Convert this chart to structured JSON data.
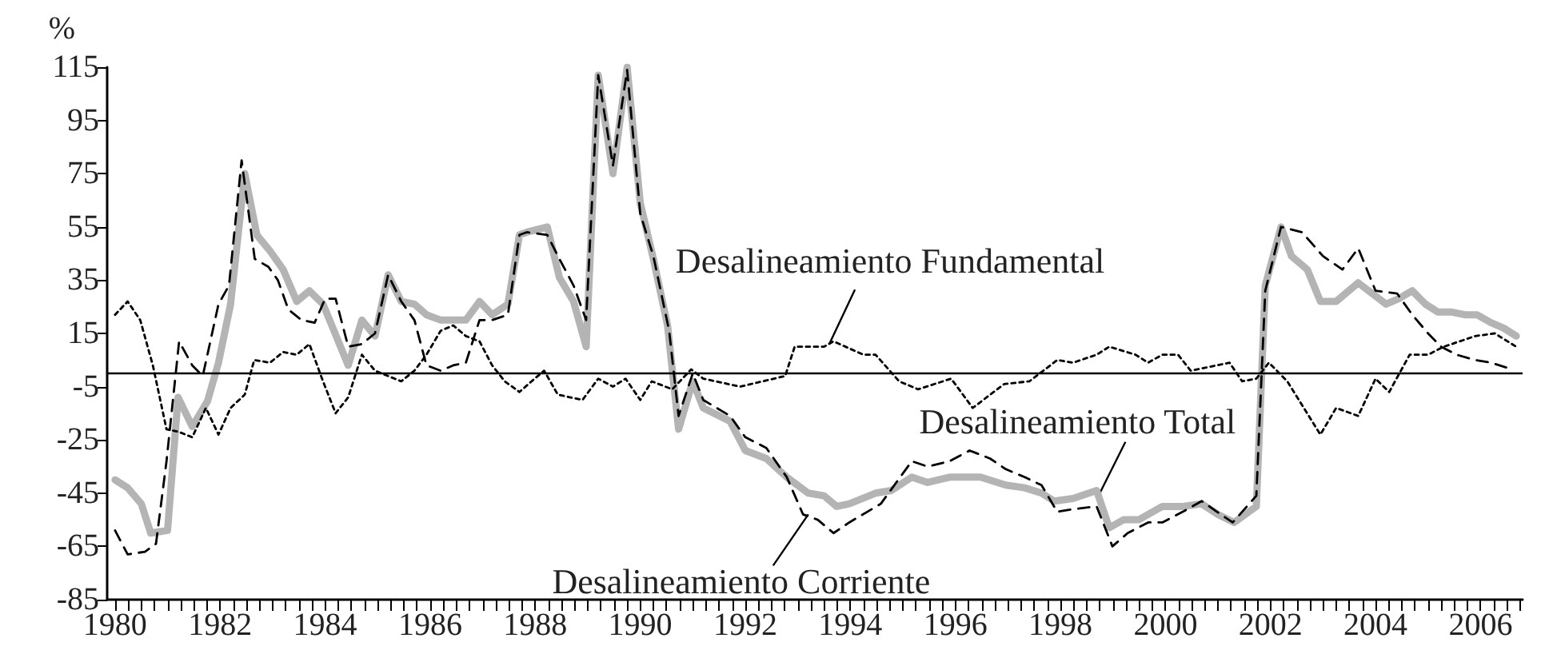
{
  "chart_data": {
    "type": "line",
    "ylabel": "%",
    "xlim": [
      1979.85,
      2006.8
    ],
    "ylim": [
      -85,
      115
    ],
    "yticks": [
      -85,
      -65,
      -45,
      -25,
      -5,
      15,
      35,
      55,
      75,
      95,
      115
    ],
    "xticks": [
      1980,
      {
        "value": 1980.25,
        "label": null
      },
      {
        "value": 1980.5,
        "label": null
      },
      {
        "value": 1980.75,
        "label": null
      },
      {
        "value": 1981,
        "label": null
      },
      {
        "value": 1981.25,
        "label": null
      },
      {
        "value": 1981.5,
        "label": null
      },
      {
        "value": 1981.75,
        "label": null
      },
      1982,
      {
        "value": 1982.25,
        "label": null
      },
      {
        "value": 1982.5,
        "label": null
      },
      {
        "value": 1982.75,
        "label": null
      },
      {
        "value": 1983,
        "label": null
      },
      {
        "value": 1983.25,
        "label": null
      },
      {
        "value": 1983.5,
        "label": null
      },
      {
        "value": 1983.75,
        "label": null
      },
      1984,
      {
        "value": 1984.25,
        "label": null
      },
      {
        "value": 1984.5,
        "label": null
      },
      {
        "value": 1984.75,
        "label": null
      },
      {
        "value": 1985,
        "label": null
      },
      {
        "value": 1985.25,
        "label": null
      },
      {
        "value": 1985.5,
        "label": null
      },
      {
        "value": 1985.75,
        "label": null
      },
      1986,
      {
        "value": 1986.25,
        "label": null
      },
      {
        "value": 1986.5,
        "label": null
      },
      {
        "value": 1986.75,
        "label": null
      },
      {
        "value": 1987,
        "label": null
      },
      {
        "value": 1987.25,
        "label": null
      },
      {
        "value": 1987.5,
        "label": null
      },
      {
        "value": 1987.75,
        "label": null
      },
      1988,
      {
        "value": 1988.25,
        "label": null
      },
      {
        "value": 1988.5,
        "label": null
      },
      {
        "value": 1988.75,
        "label": null
      },
      {
        "value": 1989,
        "label": null
      },
      {
        "value": 1989.25,
        "label": null
      },
      {
        "value": 1989.5,
        "label": null
      },
      {
        "value": 1989.75,
        "label": null
      },
      1990,
      {
        "value": 1990.25,
        "label": null
      },
      {
        "value": 1990.5,
        "label": null
      },
      {
        "value": 1990.75,
        "label": null
      },
      {
        "value": 1991,
        "label": null
      },
      {
        "value": 1991.25,
        "label": null
      },
      {
        "value": 1991.5,
        "label": null
      },
      {
        "value": 1991.75,
        "label": null
      },
      1992,
      {
        "value": 1992.25,
        "label": null
      },
      {
        "value": 1992.5,
        "label": null
      },
      {
        "value": 1992.75,
        "label": null
      },
      {
        "value": 1993,
        "label": null
      },
      {
        "value": 1993.25,
        "label": null
      },
      {
        "value": 1993.5,
        "label": null
      },
      {
        "value": 1993.75,
        "label": null
      },
      1994,
      {
        "value": 1994.25,
        "label": null
      },
      {
        "value": 1994.5,
        "label": null
      },
      {
        "value": 1994.75,
        "label": null
      },
      {
        "value": 1995,
        "label": null
      },
      {
        "value": 1995.25,
        "label": null
      },
      {
        "value": 1995.5,
        "label": null
      },
      {
        "value": 1995.75,
        "label": null
      },
      1996,
      {
        "value": 1996.25,
        "label": null
      },
      {
        "value": 1996.5,
        "label": null
      },
      {
        "value": 1996.75,
        "label": null
      },
      {
        "value": 1997,
        "label": null
      },
      {
        "value": 1997.25,
        "label": null
      },
      {
        "value": 1997.5,
        "label": null
      },
      {
        "value": 1997.75,
        "label": null
      },
      1998,
      {
        "value": 1998.25,
        "label": null
      },
      {
        "value": 1998.5,
        "label": null
      },
      {
        "value": 1998.75,
        "label": null
      },
      {
        "value": 1999,
        "label": null
      },
      {
        "value": 1999.25,
        "label": null
      },
      {
        "value": 1999.5,
        "label": null
      },
      {
        "value": 1999.75,
        "label": null
      },
      2000,
      {
        "value": 2000.25,
        "label": null
      },
      {
        "value": 2000.5,
        "label": null
      },
      {
        "value": 2000.75,
        "label": null
      },
      {
        "value": 2001,
        "label": null
      },
      {
        "value": 2001.25,
        "label": null
      },
      {
        "value": 2001.5,
        "label": null
      },
      {
        "value": 2001.75,
        "label": null
      },
      2002,
      {
        "value": 2002.25,
        "label": null
      },
      {
        "value": 2002.5,
        "label": null
      },
      {
        "value": 2002.75,
        "label": null
      },
      {
        "value": 2003,
        "label": null
      },
      {
        "value": 2003.25,
        "label": null
      },
      {
        "value": 2003.5,
        "label": null
      },
      {
        "value": 2003.75,
        "label": null
      },
      2004,
      {
        "value": 2004.25,
        "label": null
      },
      {
        "value": 2004.5,
        "label": null
      },
      {
        "value": 2004.75,
        "label": null
      },
      {
        "value": 2005,
        "label": null
      },
      {
        "value": 2005.25,
        "label": null
      },
      {
        "value": 2005.5,
        "label": null
      },
      {
        "value": 2005.75,
        "label": null
      },
      2006,
      {
        "value": 2006.25,
        "label": null
      },
      {
        "value": 2006.5,
        "label": null
      },
      {
        "value": 2006.75,
        "label": null
      }
    ],
    "grid": false,
    "marker": "none",
    "ref_lines": [
      {
        "axis": "y",
        "value": 0,
        "color": "#000000",
        "line_style": "solid"
      }
    ],
    "annotations": [
      {
        "text": "Desalineamiento Fundamental",
        "x": 1993.6,
        "y": 11
      },
      {
        "text": "Desalineamiento Total",
        "x": 1998.75,
        "y": -45
      },
      {
        "text": "Desalineamiento Corriente",
        "x": 1993.2,
        "y": -53
      }
    ],
    "series": [
      {
        "color": "#b4b4b4",
        "line_style": "solid",
        "x": [
          1980,
          1980.24,
          1980.5,
          1980.68,
          1981,
          1981.2,
          1981.47,
          1981.76,
          1981.97,
          1982.2,
          1982.47,
          1982.7,
          1982.95,
          1983.2,
          1983.46,
          1983.7,
          1983.96,
          1984.44,
          1984.7,
          1984.95,
          1985.2,
          1985.45,
          1985.7,
          1985.93,
          1986.2,
          1986.44,
          1986.68,
          1986.94,
          1987.18,
          1987.48,
          1987.7,
          1987.84,
          1988.23,
          1988.46,
          1988.73,
          1988.97,
          1989.2,
          1989.48,
          1989.75,
          1990,
          1990.25,
          1990.52,
          1990.73,
          1991,
          1991.2,
          1991.71,
          1992,
          1992.4,
          1992.79,
          1993.2,
          1993.5,
          1993.74,
          1993.98,
          1994.48,
          1994.78,
          1995.17,
          1995.47,
          1995.89,
          1996.48,
          1996.96,
          1997.32,
          1997.64,
          1997.88,
          1998.24,
          1998.69,
          1998.93,
          1999.2,
          1999.49,
          1999.94,
          2000.33,
          2000.69,
          2001,
          2001.31,
          2001.73,
          2001.9,
          2002.2,
          2002.4,
          2002.7,
          2002.95,
          2003.25,
          2003.67,
          2004.2,
          2004.44,
          2004.7,
          2004.95,
          2005.19,
          2005.45,
          2005.7,
          2005.93,
          2006.2,
          2006.44,
          2006.68
        ],
        "values": [
          -40,
          -43,
          -49,
          -60,
          -59,
          -9,
          -20,
          -10.5,
          4,
          26,
          75,
          52,
          46,
          39,
          27,
          31,
          26,
          3,
          20,
          14,
          37,
          27,
          26,
          22,
          20,
          20,
          20,
          27,
          22,
          26,
          52,
          53,
          55,
          36,
          27,
          10,
          112,
          75,
          115,
          64,
          43,
          18,
          -21,
          -3,
          -13,
          -18,
          -29,
          -32,
          -39,
          -45,
          -46,
          -50,
          -49,
          -45,
          -44,
          -39,
          -41,
          -39,
          -39,
          -42,
          -43,
          -45,
          -48,
          -47,
          -44,
          -58,
          -55,
          -55,
          -50,
          -50,
          -49,
          -53,
          -56,
          -50,
          33,
          55,
          44,
          39,
          27,
          27,
          34,
          26,
          28,
          31,
          26,
          23,
          23,
          22,
          22,
          19,
          17,
          14
        ]
      },
      {
        "color": "#000000",
        "line_style": "dashed",
        "x": [
          1980,
          1980.24,
          1980.57,
          1980.78,
          1980.98,
          1981.22,
          1981.47,
          1981.67,
          1981.97,
          1982.17,
          1982.41,
          1982.66,
          1982.92,
          1983.1,
          1983.3,
          1983.55,
          1983.8,
          1984,
          1984.2,
          1984.44,
          1984.7,
          1984.95,
          1985.2,
          1985.45,
          1985.7,
          1985.93,
          1986.2,
          1986.44,
          1986.68,
          1986.94,
          1987.18,
          1987.48,
          1987.7,
          1987.84,
          1988.23,
          1988.46,
          1988.73,
          1988.97,
          1989.2,
          1989.48,
          1989.75,
          1990,
          1990.25,
          1990.55,
          1990.73,
          1991,
          1991.2,
          1991.71,
          1992,
          1992.4,
          1992.79,
          1993.1,
          1993.38,
          1993.68,
          1993.98,
          1994.58,
          1995.17,
          1995.47,
          1995.89,
          1996.27,
          1996.66,
          1996.96,
          1997.32,
          1997.64,
          1997.94,
          1998.24,
          1998.69,
          1998.99,
          1999.28,
          1999.67,
          1999.94,
          2000.33,
          2000.69,
          2000.98,
          2001.28,
          2001.73,
          2001.9,
          2002.2,
          2002.6,
          2003,
          2003.37,
          2003.67,
          2004,
          2004.41,
          2004.7,
          2005,
          2005.25,
          2005.54,
          2005.9,
          2006.2,
          2006.52
        ],
        "values": [
          -59,
          -68,
          -67,
          -64,
          -33,
          12,
          3,
          -1,
          26,
          33,
          80,
          43,
          40,
          35,
          24,
          20,
          19,
          28,
          28,
          10,
          11,
          15,
          37,
          27,
          20,
          3,
          1,
          3,
          4,
          20,
          20,
          22,
          52,
          53,
          52,
          43,
          33,
          20,
          112,
          78,
          114,
          60,
          44,
          16,
          -16,
          0,
          -10,
          -16,
          -24,
          -28,
          -39,
          -53,
          -55,
          -60,
          -56,
          -49,
          -33,
          -35,
          -33,
          -29,
          -32,
          -36,
          -39,
          -42,
          -52,
          -51,
          -50,
          -65,
          -60,
          -56,
          -56,
          -52,
          -48,
          -52,
          -56,
          -46,
          31,
          55,
          53,
          44,
          39,
          47,
          31,
          30,
          22,
          15,
          10,
          7,
          5,
          4,
          2
        ]
      },
      {
        "color": "#000000",
        "line_style": "dotted",
        "x": [
          1980,
          1980.24,
          1980.48,
          1980.72,
          1980.98,
          1981.22,
          1981.47,
          1981.73,
          1981.97,
          1982.2,
          1982.47,
          1982.65,
          1982.95,
          1983.2,
          1983.46,
          1983.7,
          1983.96,
          1984.2,
          1984.44,
          1984.7,
          1984.95,
          1985.2,
          1985.45,
          1985.7,
          1985.93,
          1986.2,
          1986.44,
          1986.68,
          1986.94,
          1987.18,
          1987.42,
          1987.7,
          1987.93,
          1988.17,
          1988.43,
          1988.9,
          1989.2,
          1989.48,
          1989.72,
          1990,
          1990.22,
          1990.61,
          1990.97,
          1991.2,
          1991.9,
          1992.76,
          1992.94,
          1993.5,
          1993.68,
          1994.25,
          1994.48,
          1994.93,
          1995.29,
          1995.92,
          1996.33,
          1996.93,
          1997.41,
          1997.94,
          1998.24,
          1998.69,
          1998.93,
          1999.43,
          1999.67,
          1999.94,
          2000.24,
          2000.48,
          2001.22,
          2001.46,
          2001.73,
          2001.97,
          2002.32,
          2002.95,
          2003.25,
          2003.67,
          2004,
          2004.26,
          2004.65,
          2005,
          2005.3,
          2005.9,
          2006.27,
          2006.68
        ],
        "values": [
          22,
          27,
          20,
          3,
          -21,
          -22,
          -24,
          -13,
          -23,
          -13,
          -8,
          5,
          4,
          8,
          7,
          11,
          -3,
          -15,
          -9,
          7,
          1,
          -1,
          -3,
          1,
          7,
          16,
          18,
          14,
          12,
          3,
          -3,
          -7,
          -3,
          1,
          -8,
          -10,
          -2,
          -5,
          -2,
          -10,
          -3,
          -6,
          1.5,
          -2,
          -5,
          -1,
          10,
          10,
          12,
          7,
          7,
          -3,
          -6,
          -2,
          -13,
          -4,
          -3,
          5,
          4,
          7,
          10,
          7,
          4,
          7,
          7,
          1,
          4,
          -3,
          -2,
          4,
          -3,
          -23,
          -13,
          -16,
          -2,
          -7,
          7,
          7,
          10,
          14,
          15,
          10
        ]
      }
    ]
  }
}
